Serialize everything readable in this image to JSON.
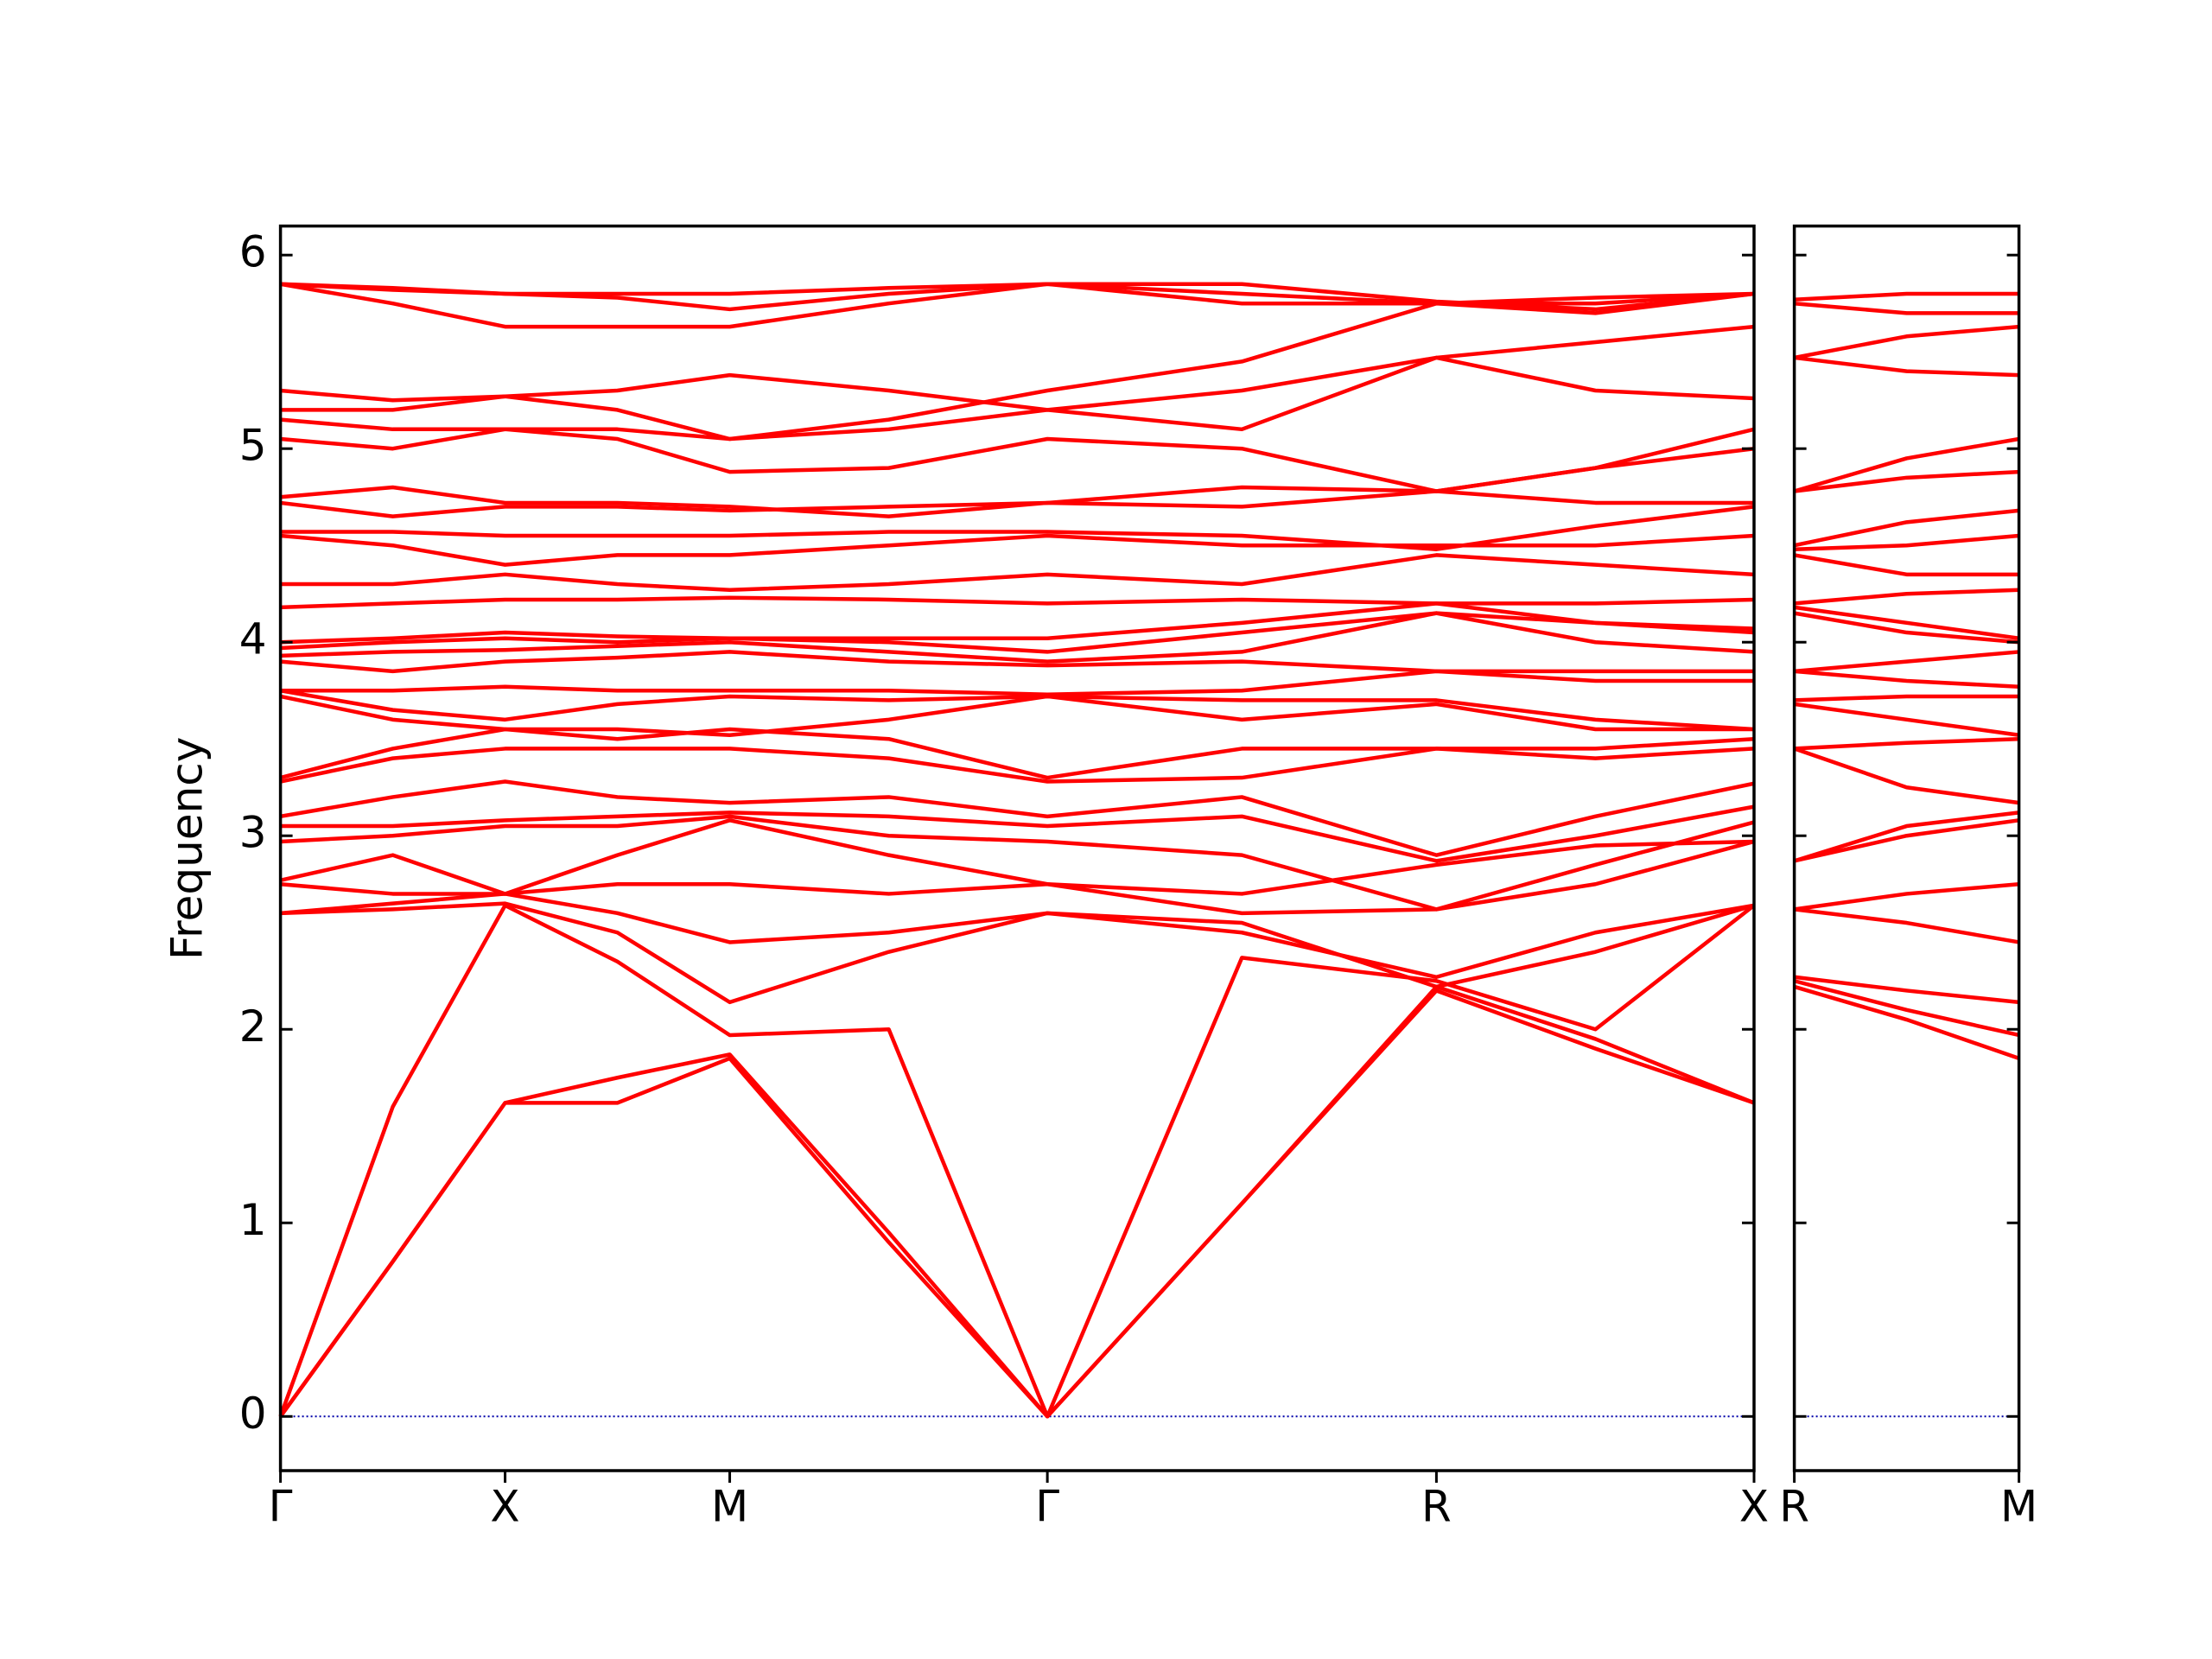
{
  "chart_data": [
    {
      "type": "line",
      "ylabel": "Frequency",
      "color": "#ff0000",
      "hline": 0,
      "hline_color": "#0000aa",
      "xlim": [
        0,
        3.28
      ],
      "ylim": [
        -0.28,
        6.15
      ],
      "xticks": [
        {
          "value": 0,
          "label": "Γ"
        },
        {
          "value": 0.5,
          "label": "X"
        },
        {
          "value": 1.0,
          "label": "M"
        },
        {
          "value": 1.707,
          "label": "Γ"
        },
        {
          "value": 2.573,
          "label": "R"
        },
        {
          "value": 3.28,
          "label": "X"
        }
      ],
      "yticks": [
        0,
        1,
        2,
        3,
        4,
        5,
        6
      ],
      "x": [
        0,
        0.25,
        0.5,
        0.75,
        1.0,
        1.354,
        1.707,
        2.14,
        2.573,
        2.927,
        3.28
      ],
      "series": [
        {
          "values": [
            0,
            0.8,
            1.62,
            1.62,
            1.85,
            0.9,
            0,
            1.1,
            2.2,
            1.9,
            1.62
          ]
        },
        {
          "values": [
            0,
            0.8,
            1.62,
            1.75,
            1.87,
            0.95,
            0,
            1.1,
            2.22,
            1.95,
            1.62
          ]
        },
        {
          "values": [
            0,
            1.6,
            2.64,
            2.35,
            1.97,
            2.0,
            0,
            2.37,
            2.25,
            2.0,
            2.64
          ]
        },
        {
          "values": [
            2.6,
            2.62,
            2.65,
            2.5,
            2.14,
            2.4,
            2.6,
            2.5,
            2.27,
            2.5,
            2.64
          ]
        },
        {
          "values": [
            2.6,
            2.65,
            2.7,
            2.6,
            2.45,
            2.5,
            2.6,
            2.55,
            2.22,
            2.4,
            2.64
          ]
        },
        {
          "values": [
            2.75,
            2.7,
            2.7,
            2.75,
            2.75,
            2.7,
            2.75,
            2.6,
            2.62,
            2.75,
            2.97
          ]
        },
        {
          "values": [
            2.77,
            2.9,
            2.7,
            2.9,
            3.08,
            2.9,
            2.75,
            2.7,
            2.85,
            2.95,
            2.97
          ]
        },
        {
          "values": [
            2.97,
            3.0,
            3.05,
            3.05,
            3.1,
            3.0,
            2.97,
            2.9,
            2.62,
            2.85,
            3.07
          ]
        },
        {
          "values": [
            3.05,
            3.05,
            3.08,
            3.1,
            3.12,
            3.1,
            3.05,
            3.1,
            2.87,
            3.0,
            3.15
          ]
        },
        {
          "values": [
            3.1,
            3.2,
            3.28,
            3.2,
            3.17,
            3.2,
            3.1,
            3.2,
            2.9,
            3.1,
            3.27
          ]
        },
        {
          "values": [
            3.28,
            3.4,
            3.45,
            3.45,
            3.45,
            3.4,
            3.28,
            3.3,
            3.45,
            3.4,
            3.45
          ]
        },
        {
          "values": [
            3.3,
            3.45,
            3.55,
            3.5,
            3.55,
            3.5,
            3.3,
            3.45,
            3.45,
            3.45,
            3.5
          ]
        },
        {
          "values": [
            3.72,
            3.6,
            3.55,
            3.55,
            3.52,
            3.6,
            3.72,
            3.6,
            3.68,
            3.55,
            3.55
          ]
        },
        {
          "values": [
            3.75,
            3.65,
            3.6,
            3.68,
            3.72,
            3.7,
            3.72,
            3.7,
            3.7,
            3.6,
            3.55
          ]
        },
        {
          "values": [
            3.75,
            3.75,
            3.77,
            3.75,
            3.75,
            3.75,
            3.73,
            3.75,
            3.85,
            3.8,
            3.8
          ]
        },
        {
          "values": [
            3.9,
            3.85,
            3.9,
            3.92,
            3.95,
            3.9,
            3.88,
            3.9,
            3.85,
            3.85,
            3.85
          ]
        },
        {
          "values": [
            3.93,
            3.95,
            3.96,
            3.98,
            4.0,
            3.95,
            3.9,
            3.95,
            4.15,
            4.0,
            3.95
          ]
        },
        {
          "values": [
            3.97,
            4.0,
            4.02,
            4.0,
            4.02,
            4.0,
            3.95,
            4.05,
            4.15,
            4.1,
            4.05
          ]
        },
        {
          "values": [
            4.0,
            4.02,
            4.05,
            4.03,
            4.02,
            4.02,
            4.02,
            4.1,
            4.2,
            4.1,
            4.07
          ]
        },
        {
          "values": [
            4.18,
            4.2,
            4.22,
            4.22,
            4.23,
            4.22,
            4.2,
            4.22,
            4.2,
            4.2,
            4.22
          ]
        },
        {
          "values": [
            4.3,
            4.3,
            4.35,
            4.3,
            4.27,
            4.3,
            4.35,
            4.3,
            4.45,
            4.4,
            4.35
          ]
        },
        {
          "values": [
            4.55,
            4.5,
            4.4,
            4.45,
            4.45,
            4.5,
            4.55,
            4.5,
            4.5,
            4.5,
            4.55
          ]
        },
        {
          "values": [
            4.57,
            4.57,
            4.55,
            4.55,
            4.55,
            4.57,
            4.57,
            4.55,
            4.48,
            4.6,
            4.7
          ]
        },
        {
          "values": [
            4.72,
            4.65,
            4.7,
            4.7,
            4.68,
            4.7,
            4.72,
            4.7,
            4.78,
            4.72,
            4.72
          ]
        },
        {
          "values": [
            4.75,
            4.8,
            4.72,
            4.72,
            4.7,
            4.65,
            4.72,
            4.8,
            4.78,
            4.9,
            5.0
          ]
        },
        {
          "values": [
            5.05,
            5.0,
            5.1,
            5.05,
            4.88,
            4.9,
            5.05,
            5.0,
            4.78,
            4.9,
            5.1
          ]
        },
        {
          "values": [
            5.15,
            5.1,
            5.1,
            5.1,
            5.05,
            5.1,
            5.2,
            5.1,
            5.47,
            5.3,
            5.26
          ]
        },
        {
          "values": [
            5.2,
            5.2,
            5.27,
            5.3,
            5.38,
            5.3,
            5.2,
            5.3,
            5.47,
            5.55,
            5.63
          ]
        },
        {
          "values": [
            5.3,
            5.25,
            5.27,
            5.2,
            5.05,
            5.15,
            5.3,
            5.45,
            5.75,
            5.7,
            5.8
          ]
        },
        {
          "values": [
            5.85,
            5.75,
            5.63,
            5.63,
            5.63,
            5.75,
            5.85,
            5.75,
            5.75,
            5.78,
            5.8
          ]
        },
        {
          "values": [
            5.85,
            5.82,
            5.8,
            5.78,
            5.72,
            5.8,
            5.85,
            5.8,
            5.75,
            5.75,
            5.8
          ]
        },
        {
          "values": [
            5.85,
            5.83,
            5.8,
            5.8,
            5.8,
            5.83,
            5.85,
            5.85,
            5.76,
            5.72,
            5.8
          ]
        }
      ]
    },
    {
      "type": "line",
      "color": "#ff0000",
      "hline": 0,
      "hline_color": "#0000aa",
      "xlim": [
        0,
        0.5
      ],
      "ylim": [
        -0.28,
        6.15
      ],
      "xticks": [
        {
          "value": 0,
          "label": "R"
        },
        {
          "value": 0.5,
          "label": "M"
        }
      ],
      "yticks": [
        0,
        1,
        2,
        3,
        4,
        5,
        6
      ],
      "x": [
        0,
        0.25,
        0.5
      ],
      "series": [
        {
          "values": [
            2.22,
            2.05,
            1.85
          ]
        },
        {
          "values": [
            2.25,
            2.1,
            1.97
          ]
        },
        {
          "values": [
            2.27,
            2.2,
            2.14
          ]
        },
        {
          "values": [
            2.62,
            2.55,
            2.45
          ]
        },
        {
          "values": [
            2.62,
            2.7,
            2.75
          ]
        },
        {
          "values": [
            2.87,
            3.0,
            3.08
          ]
        },
        {
          "values": [
            2.87,
            3.05,
            3.12
          ]
        },
        {
          "values": [
            3.45,
            3.25,
            3.17
          ]
        },
        {
          "values": [
            3.45,
            3.48,
            3.5
          ]
        },
        {
          "values": [
            3.68,
            3.6,
            3.52
          ]
        },
        {
          "values": [
            3.7,
            3.72,
            3.72
          ]
        },
        {
          "values": [
            3.85,
            3.8,
            3.77
          ]
        },
        {
          "values": [
            3.85,
            3.9,
            3.95
          ]
        },
        {
          "values": [
            4.15,
            4.05,
            4.0
          ]
        },
        {
          "values": [
            4.18,
            4.1,
            4.02
          ]
        },
        {
          "values": [
            4.2,
            4.25,
            4.27
          ]
        },
        {
          "values": [
            4.45,
            4.35,
            4.35
          ]
        },
        {
          "values": [
            4.48,
            4.5,
            4.55
          ]
        },
        {
          "values": [
            4.5,
            4.62,
            4.68
          ]
        },
        {
          "values": [
            4.78,
            4.85,
            4.88
          ]
        },
        {
          "values": [
            4.78,
            4.95,
            5.05
          ]
        },
        {
          "values": [
            5.47,
            5.4,
            5.38
          ]
        },
        {
          "values": [
            5.47,
            5.58,
            5.63
          ]
        },
        {
          "values": [
            5.75,
            5.7,
            5.7
          ]
        },
        {
          "values": [
            5.77,
            5.8,
            5.8
          ]
        }
      ]
    }
  ]
}
